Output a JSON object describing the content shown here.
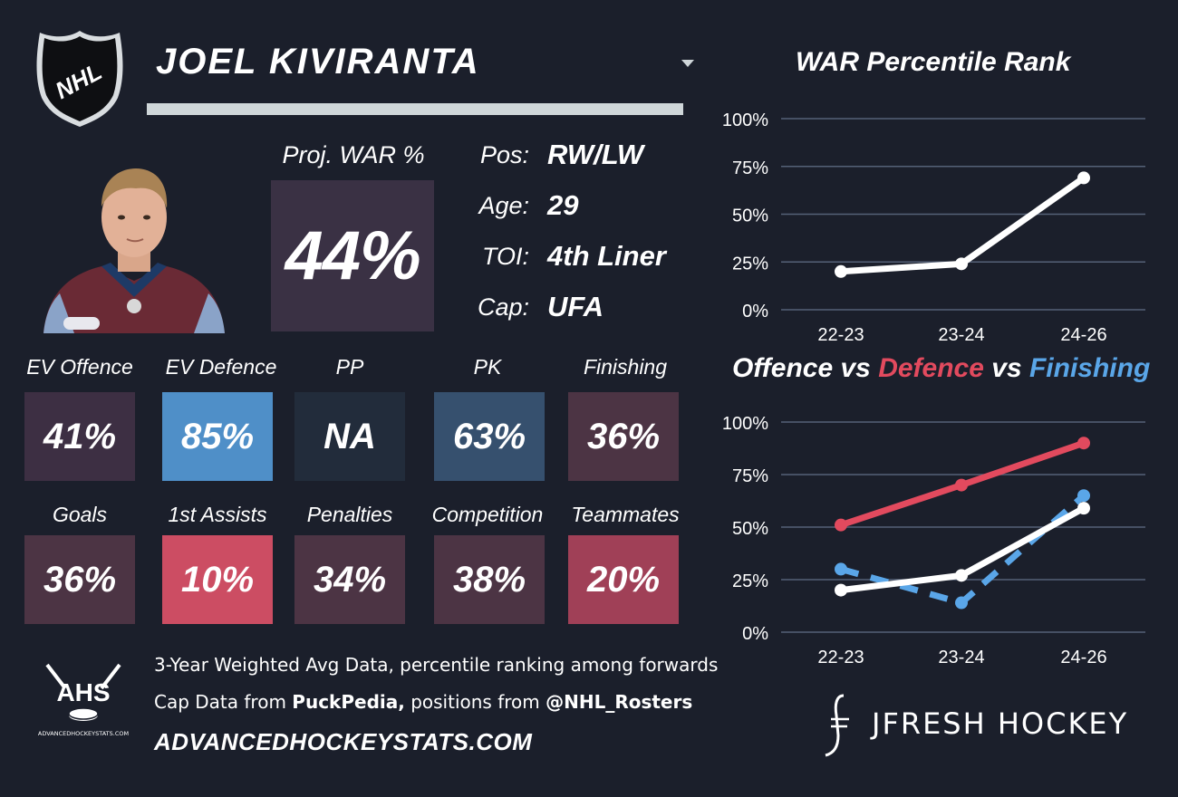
{
  "header": {
    "player_name": "JOEL KIVIRANTA",
    "logo_text": "NHL"
  },
  "proj_war": {
    "label": "Proj. WAR %",
    "value": "44%",
    "color": "#3a3144"
  },
  "info": [
    {
      "label": "Pos:",
      "value": "RW/LW"
    },
    {
      "label": "Age:",
      "value": "29"
    },
    {
      "label": "TOI:",
      "value": "4th Liner"
    },
    {
      "label": "Cap:",
      "value": "UFA"
    }
  ],
  "stats_row1": [
    {
      "label": "EV Offence",
      "value": "41%",
      "color": "#3d2f43"
    },
    {
      "label": "EV Defence",
      "value": "85%",
      "color": "#4f8fc8"
    },
    {
      "label": "PP",
      "value": "NA",
      "color": "#222c3b"
    },
    {
      "label": "PK",
      "value": "63%",
      "color": "#36506e"
    },
    {
      "label": "Finishing",
      "value": "36%",
      "color": "#4c3444"
    }
  ],
  "stats_row2": [
    {
      "label": "Goals",
      "value": "36%",
      "color": "#4c3444"
    },
    {
      "label": "1st Assists",
      "value": "10%",
      "color": "#cc4d63"
    },
    {
      "label": "Penalties",
      "value": "34%",
      "color": "#4c3444"
    },
    {
      "label": "Competition",
      "value": "38%",
      "color": "#4c3444"
    },
    {
      "label": "Teammates",
      "value": "20%",
      "color": "#a04057"
    }
  ],
  "footer": {
    "ahs_logo_text": "AHS",
    "ahs_logo_subtext": "ADVANCEDHOCKEYSTATS.COM",
    "line1": "3-Year Weighted Avg Data, percentile ranking among forwards",
    "line2_prefix": "Cap Data from ",
    "line2_bold1": "PuckPedia,",
    "line2_mid": " positions from ",
    "line2_bold2": "@NHL_Rosters",
    "url": "ADVANCEDHOCKEYSTATS.COM",
    "brand": "JFRESH HOCKEY"
  },
  "colors": {
    "background": "#1b1f2b",
    "offence": "#ffffff",
    "defence": "#e24a5e",
    "finishing": "#5aa6e8",
    "grid": "#556177"
  },
  "chart_data": [
    {
      "type": "line",
      "title": "WAR Percentile Rank",
      "categories": [
        "22-23",
        "23-24",
        "24-26"
      ],
      "y_ticks": [
        "0%",
        "25%",
        "50%",
        "75%",
        "100%"
      ],
      "ylim": [
        0,
        100
      ],
      "grid": true,
      "series": [
        {
          "values": [
            20,
            24,
            69
          ],
          "color": "#ffffff",
          "dashed": false
        }
      ]
    },
    {
      "type": "line",
      "title_parts": [
        {
          "text": "Offence",
          "color": "#ffffff"
        },
        {
          "text": " vs ",
          "color": "#ffffff"
        },
        {
          "text": "Defence",
          "color": "#e24a5e"
        },
        {
          "text": " vs ",
          "color": "#ffffff"
        },
        {
          "text": "Finishing",
          "color": "#5aa6e8"
        }
      ],
      "categories": [
        "22-23",
        "23-24",
        "24-26"
      ],
      "y_ticks": [
        "0%",
        "25%",
        "50%",
        "75%",
        "100%"
      ],
      "ylim": [
        0,
        100
      ],
      "grid": true,
      "series": [
        {
          "name": "Defence",
          "values": [
            51,
            70,
            90
          ],
          "color": "#e24a5e",
          "dashed": false
        },
        {
          "name": "Finishing",
          "values": [
            30,
            14,
            65
          ],
          "color": "#5aa6e8",
          "dashed": true
        },
        {
          "name": "Offence",
          "values": [
            20,
            27,
            59
          ],
          "color": "#ffffff",
          "dashed": false
        }
      ]
    }
  ]
}
